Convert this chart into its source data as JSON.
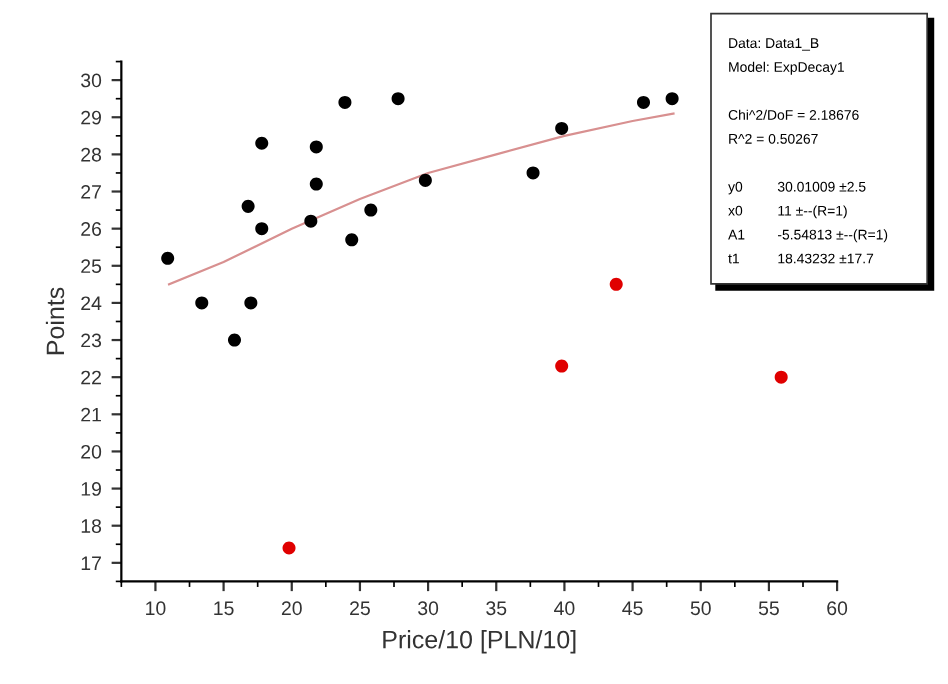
{
  "chart_data": {
    "type": "scatter",
    "xlabel": "Price/10 [PLN/10]",
    "ylabel": "Points",
    "xlim": [
      7.5,
      60
    ],
    "ylim": [
      16.5,
      30.5
    ],
    "xticks": [
      10,
      15,
      20,
      25,
      30,
      35,
      40,
      45,
      50,
      55,
      60
    ],
    "yticks": [
      17,
      18,
      19,
      20,
      21,
      22,
      23,
      24,
      25,
      26,
      27,
      28,
      29,
      30
    ],
    "grid": false,
    "marker": "circle",
    "series": [
      {
        "color": "#000000",
        "x": [
          10.9,
          13.4,
          15.8,
          16.8,
          17.0,
          17.8,
          17.8,
          21.4,
          21.8,
          21.8,
          23.9,
          24.4,
          25.8,
          27.8,
          29.8,
          37.7,
          39.8,
          45.8,
          47.9
        ],
        "values": [
          25.2,
          24.0,
          23.0,
          26.6,
          24.0,
          28.3,
          26.0,
          26.2,
          28.2,
          27.2,
          29.4,
          25.7,
          26.5,
          29.5,
          27.3,
          27.5,
          28.7,
          29.4,
          29.5
        ]
      },
      {
        "color": "#e00000",
        "x": [
          19.8,
          39.8,
          43.8,
          55.9
        ],
        "values": [
          17.4,
          22.3,
          24.5,
          22.0
        ]
      },
      {
        "type": "line",
        "color": "#d89090",
        "line_style": "solid",
        "marker": "none",
        "x": [
          11,
          15,
          20,
          25,
          30,
          35,
          40,
          45,
          48
        ],
        "values": [
          24.5,
          25.1,
          26.0,
          26.8,
          27.5,
          28.0,
          28.5,
          28.9,
          29.1
        ]
      }
    ],
    "annotations": [
      "Data: Data1_B",
      "Model: ExpDecay1",
      "Chi^2/DoF = 2.18676",
      "R^2 = 0.50267",
      "y0 30.01009 ±2.5",
      "x0 11 ±--(R=1)",
      "A1 -5.54813 ±--(R=1)",
      "t1 18.43232 ±17.7"
    ]
  }
}
